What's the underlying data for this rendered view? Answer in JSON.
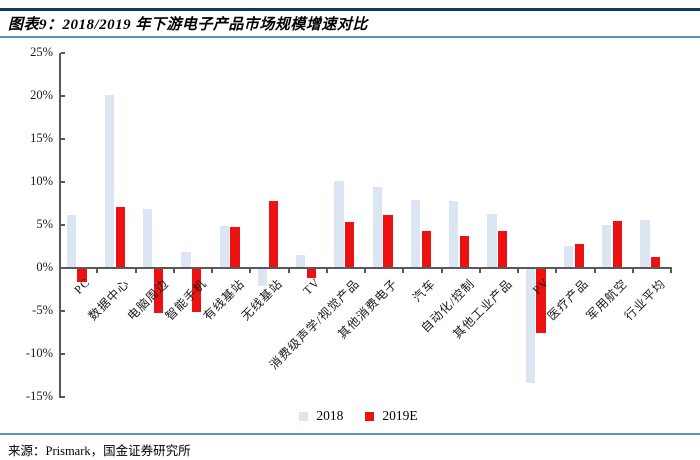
{
  "header": {
    "title": "图表9：2018/2019 年下游电子产品市场规模增速对比"
  },
  "chart_data": {
    "type": "bar",
    "title": "2018/2019 年下游电子产品市场规模增速对比",
    "categories": [
      "PC",
      "数据中心",
      "电脑周边",
      "智能手机",
      "有线基站",
      "无线基站",
      "TV",
      "消费级声学/视觉产品",
      "其他消费电子",
      "汽车",
      "自动化/控制",
      "其他工业产品",
      "PV",
      "医疗产品",
      "军用航空",
      "行业平均"
    ],
    "series": [
      {
        "name": "2018",
        "color": "#dce6f2",
        "values": [
          6.0,
          20.0,
          6.8,
          1.8,
          4.8,
          -2.0,
          1.4,
          10.0,
          9.3,
          7.8,
          7.7,
          6.2,
          -13.2,
          2.5,
          4.9,
          5.5
        ]
      },
      {
        "name": "2019E",
        "color": "#ee1111",
        "values": [
          -1.5,
          7.0,
          -5.1,
          -5.0,
          4.6,
          7.7,
          -1.0,
          5.2,
          6.0,
          4.2,
          3.6,
          4.2,
          -7.4,
          2.7,
          5.4,
          1.2
        ]
      }
    ],
    "ylabel": "",
    "xlabel": "",
    "ylim": [
      -15,
      25
    ],
    "y_tick_step": 5,
    "y_tick_labels": [
      "25%",
      "20%",
      "15%",
      "10%",
      "5%",
      "0%",
      "-5%",
      "-10%",
      "-15%"
    ],
    "grid": false,
    "legend_position": "bottom"
  },
  "colors": {
    "accent_navy_rule": "#17365d",
    "accent_blue_rule": "#5b93c4",
    "axis": "#595959"
  },
  "footer": {
    "source": "来源：Prismark，国金证券研究所"
  }
}
